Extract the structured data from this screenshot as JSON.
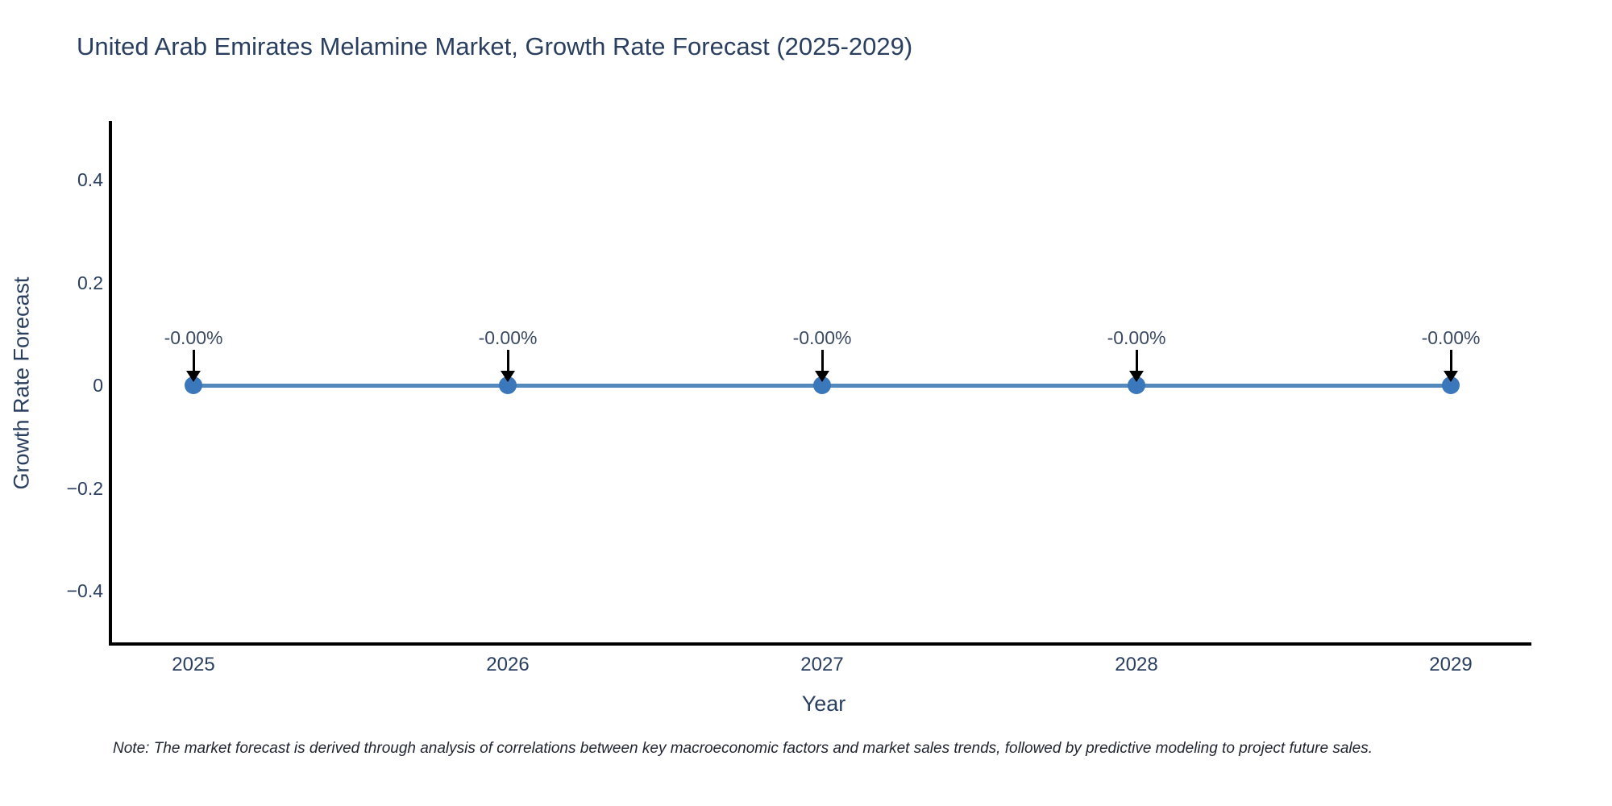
{
  "title": "United Arab Emirates Melamine Market, Growth Rate Forecast (2025-2029)",
  "note": "Note: The market forecast is derived through analysis of correlations between key macroeconomic factors and market sales trends, followed by predictive modeling to project future sales.",
  "chart_data": {
    "type": "line",
    "title": "United Arab Emirates Melamine Market, Growth Rate Forecast (2025-2029)",
    "x": [
      "2025",
      "2026",
      "2027",
      "2028",
      "2029"
    ],
    "series": [
      {
        "name": "Growth Rate Forecast",
        "values": [
          0,
          0,
          0,
          0,
          0
        ],
        "point_labels": [
          "-0.00%",
          "-0.00%",
          "-0.00%",
          "-0.00%",
          "-0.00%"
        ]
      }
    ],
    "xlabel": "Year",
    "ylabel": "Growth Rate Forecast",
    "ytick_labels": [
      "0.4",
      "0.2",
      "0",
      "−0.2",
      "−0.4"
    ],
    "ytick_values": [
      0.4,
      0.2,
      0,
      -0.2,
      -0.4
    ],
    "ylim": [
      -0.5,
      0.51
    ],
    "grid": false,
    "legend": "none",
    "annotations": "black down arrows from each point label to its marker",
    "colors": {
      "line": "#5489bd",
      "marker": "#3a78bb",
      "axis": "#000000",
      "text": "#2a3f5f",
      "annotation_text": "#3b4a63",
      "arrow": "#000000",
      "background": "#ffffff"
    }
  }
}
